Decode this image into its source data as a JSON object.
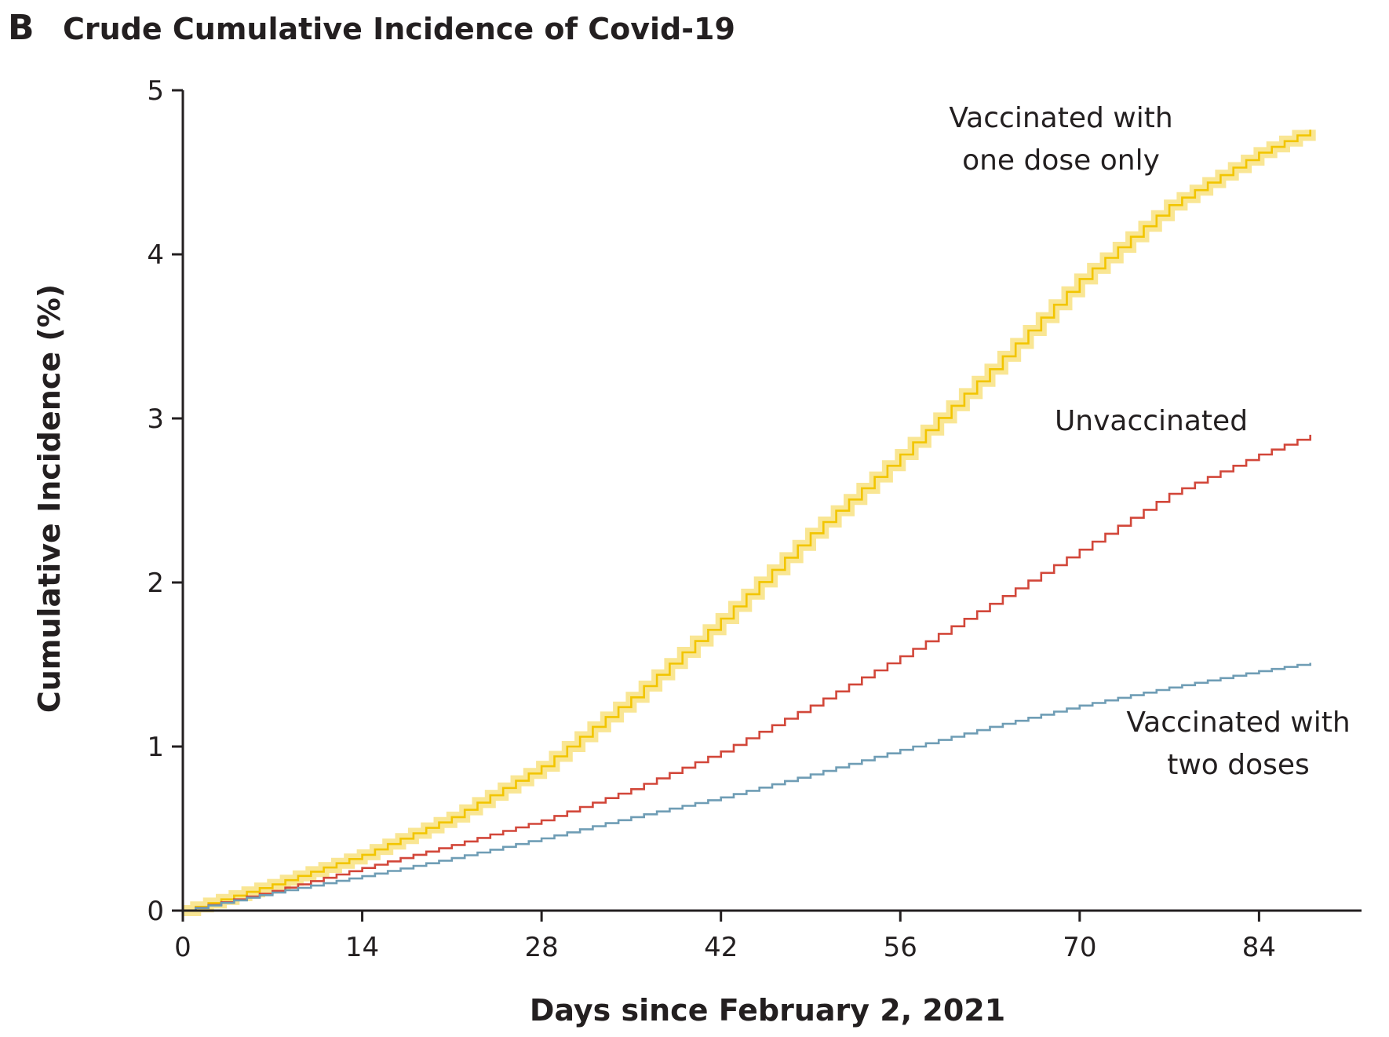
{
  "panel_letter": "B",
  "chart_data": {
    "type": "line",
    "step": true,
    "title": "Crude Cumulative Incidence of Covid-19",
    "xlabel": "Days since February 2, 2021",
    "ylabel": "Cumulative Incidence (%)",
    "xlim": [
      0,
      92
    ],
    "ylim": [
      0,
      5
    ],
    "xticks": [
      0,
      14,
      28,
      42,
      56,
      70,
      84
    ],
    "yticks": [
      0,
      1,
      2,
      3,
      4,
      5
    ],
    "grid": false,
    "x": [
      0,
      7,
      14,
      21,
      28,
      35,
      42,
      49,
      56,
      63,
      70,
      77,
      84,
      88
    ],
    "series": [
      {
        "name": "Vaccinated with one dose only",
        "label_lines": [
          "Vaccinated with",
          "one dose only"
        ],
        "color": "#f2c500",
        "band_color": "#f7dd70",
        "values": [
          0,
          0.16,
          0.34,
          0.57,
          0.88,
          1.3,
          1.78,
          2.3,
          2.78,
          3.3,
          3.85,
          4.3,
          4.62,
          4.76
        ]
      },
      {
        "name": "Unvaccinated",
        "label_lines": [
          "Unvaccinated"
        ],
        "color": "#d2473a",
        "values": [
          0,
          0.12,
          0.26,
          0.4,
          0.55,
          0.74,
          0.97,
          1.25,
          1.55,
          1.87,
          2.2,
          2.54,
          2.78,
          2.9
        ]
      },
      {
        "name": "Vaccinated with two doses",
        "label_lines": [
          "Vaccinated with",
          "two doses"
        ],
        "color": "#6f9db5",
        "values": [
          0,
          0.11,
          0.21,
          0.32,
          0.44,
          0.57,
          0.69,
          0.83,
          0.98,
          1.12,
          1.25,
          1.36,
          1.46,
          1.51
        ]
      }
    ]
  }
}
